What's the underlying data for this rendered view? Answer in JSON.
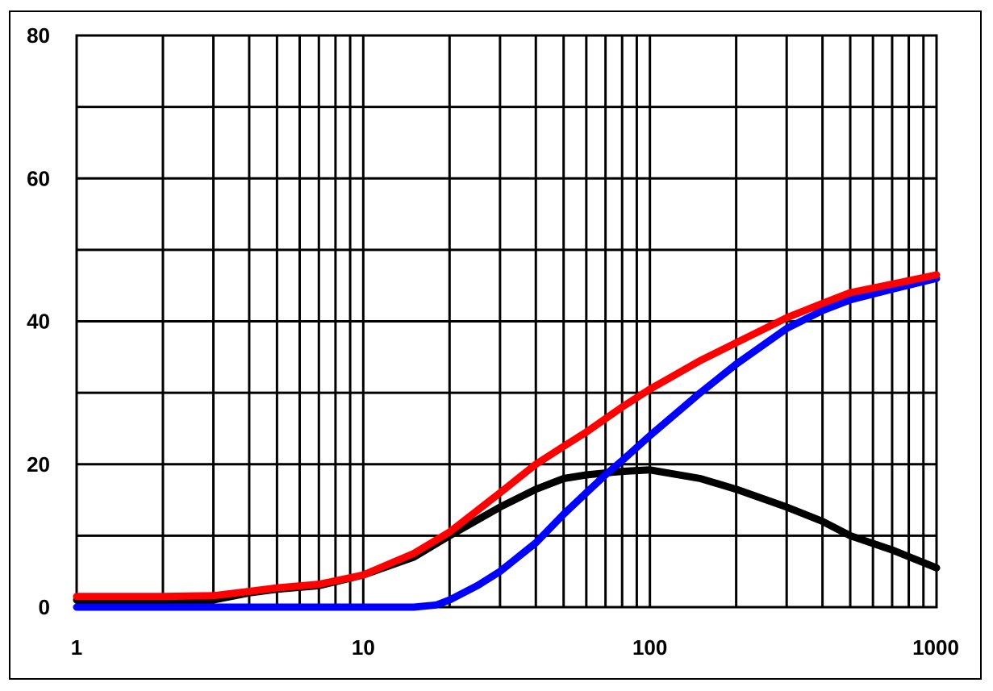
{
  "chart_data": {
    "type": "line",
    "title": "",
    "xlabel": "",
    "ylabel": "",
    "x_scale": "log",
    "xlim": [
      1,
      1000
    ],
    "ylim": [
      0,
      80
    ],
    "grid": true,
    "x_tick_labels": [
      "1",
      "10",
      "100",
      "1000"
    ],
    "y_tick_labels": [
      "0",
      "20",
      "40",
      "60",
      "80"
    ],
    "series": [
      {
        "color": "#000000",
        "x": [
          1,
          2,
          3,
          4,
          5,
          7,
          10,
          15,
          20,
          30,
          40,
          50,
          60,
          80,
          100,
          150,
          200,
          300,
          400,
          500,
          700,
          1000
        ],
        "y": [
          1,
          1,
          1,
          2,
          2.5,
          3,
          4.5,
          7,
          10,
          14,
          16.5,
          18,
          18.5,
          19,
          19.2,
          18,
          16.5,
          14,
          12,
          10,
          8,
          5.5
        ]
      },
      {
        "color": "#0000ff",
        "x": [
          1,
          2,
          5,
          10,
          15,
          18,
          20,
          25,
          30,
          40,
          50,
          60,
          70,
          80,
          100,
          150,
          200,
          300,
          400,
          500,
          700,
          1000
        ],
        "y": [
          0,
          0,
          0,
          0,
          0,
          0.3,
          1,
          3,
          5,
          9,
          13,
          16,
          18.5,
          20.5,
          24,
          30,
          34,
          39,
          41.5,
          43,
          44.5,
          46
        ]
      },
      {
        "color": "#ff0000",
        "x": [
          1,
          2,
          3,
          4,
          5,
          7,
          10,
          15,
          20,
          30,
          40,
          50,
          60,
          80,
          100,
          150,
          200,
          300,
          400,
          500,
          700,
          1000
        ],
        "y": [
          1.5,
          1.5,
          1.6,
          2.2,
          2.7,
          3.2,
          4.5,
          7.5,
          10.5,
          16,
          20,
          22.5,
          24.5,
          28,
          30.5,
          34.5,
          37,
          40.5,
          42.5,
          44,
          45.2,
          46.5
        ]
      }
    ]
  }
}
